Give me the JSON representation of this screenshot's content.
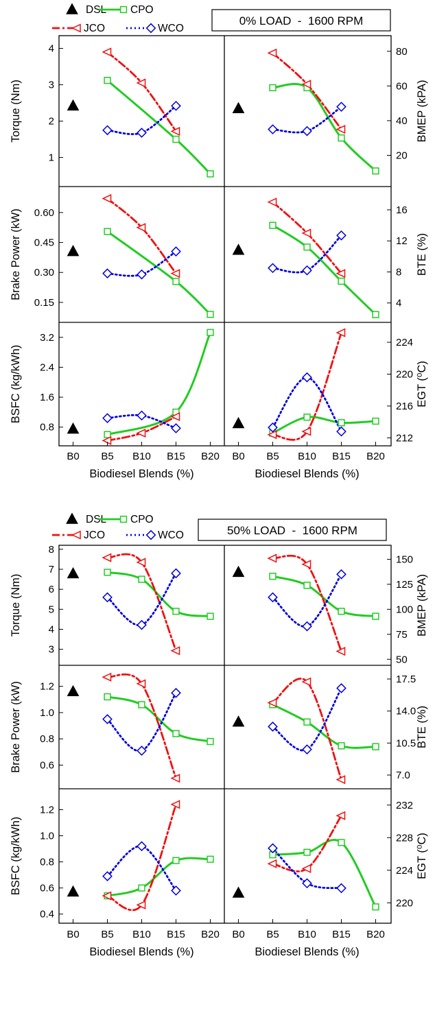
{
  "figure": {
    "x_categories": [
      "B0",
      "B5",
      "B10",
      "B15",
      "B20"
    ],
    "x_label": "Biodiesel Blends (%)",
    "legend": [
      {
        "name": "DSL",
        "color": "#000000",
        "marker": "triangle-filled"
      },
      {
        "name": "CPO",
        "color": "#22cc22",
        "marker": "square-open"
      },
      {
        "name": "JCO",
        "color": "#ee1111",
        "marker": "triangle-left-open"
      },
      {
        "name": "WCO",
        "color": "#0000dd",
        "marker": "diamond-open"
      }
    ]
  },
  "chart_data": [
    {
      "condition": "0% LOAD  -  1600 RPM",
      "type": "line",
      "categories": [
        "B0",
        "B5",
        "B10",
        "B15",
        "B20"
      ],
      "rows": [
        {
          "left": {
            "ylabel": "Torque (Nm)",
            "ylim": [
              0.2,
              4.35
            ],
            "ticks": [
              1,
              2,
              3,
              4
            ],
            "tick_labels": [
              "1",
              "2",
              "3",
              "4"
            ],
            "series": [
              {
                "name": "DSL",
                "values": [
                  2.42,
                  null,
                  null,
                  null,
                  null
                ]
              },
              {
                "name": "CPO",
                "values": [
                  null,
                  3.12,
                  null,
                  1.5,
                  0.55
                ]
              },
              {
                "name": "JCO",
                "values": [
                  null,
                  3.9,
                  3.05,
                  1.72,
                  null
                ]
              },
              {
                "name": "WCO",
                "values": [
                  null,
                  1.75,
                  1.68,
                  2.42,
                  null
                ]
              }
            ]
          },
          "right": {
            "ylabel": "BMEP (kPA)",
            "ylim": [
              2,
              89
            ],
            "ticks": [
              20,
              40,
              60,
              80
            ],
            "tick_labels": [
              "20",
              "40",
              "60",
              "80"
            ],
            "series": [
              {
                "name": "DSL",
                "values": [
                  47,
                  null,
                  null,
                  null,
                  null
                ]
              },
              {
                "name": "CPO",
                "values": [
                  null,
                  59,
                  59,
                  30,
                  11
                ]
              },
              {
                "name": "JCO",
                "values": [
                  null,
                  79,
                  61,
                  35,
                  null
                ]
              },
              {
                "name": "WCO",
                "values": [
                  null,
                  35,
                  34,
                  48,
                  null
                ]
              }
            ]
          }
        },
        {
          "left": {
            "ylabel": "Brake Power (kW)",
            "ylim": [
              0.05,
              0.73
            ],
            "ticks": [
              0.15,
              0.3,
              0.45,
              0.6
            ],
            "tick_labels": [
              "0.15",
              "0.30",
              "0.45",
              "0.60"
            ],
            "series": [
              {
                "name": "DSL",
                "values": [
                  0.405,
                  null,
                  null,
                  null,
                  null
                ]
              },
              {
                "name": "CPO",
                "values": [
                  null,
                  0.505,
                  null,
                  0.255,
                  0.09
                ]
              },
              {
                "name": "JCO",
                "values": [
                  null,
                  0.67,
                  0.525,
                  0.295,
                  null
                ]
              },
              {
                "name": "WCO",
                "values": [
                  null,
                  0.295,
                  0.29,
                  0.405,
                  null
                ]
              }
            ]
          },
          "right": {
            "ylabel": "BTE (%)",
            "ylim": [
              1.5,
              19
            ],
            "ticks": [
              4,
              8,
              12,
              16
            ],
            "tick_labels": [
              "4",
              "8",
              "12",
              "16"
            ],
            "series": [
              {
                "name": "DSL",
                "values": [
                  10.8,
                  null,
                  null,
                  null,
                  null
                ]
              },
              {
                "name": "CPO",
                "values": [
                  null,
                  14,
                  11.2,
                  6.8,
                  2.5
                ]
              },
              {
                "name": "JCO",
                "values": [
                  null,
                  17,
                  13,
                  7.8,
                  null
                ]
              },
              {
                "name": "WCO",
                "values": [
                  null,
                  8.5,
                  8.2,
                  12.7,
                  null
                ]
              }
            ]
          }
        },
        {
          "left": {
            "ylabel": "BSFC (kg/kWh)",
            "ylim": [
              0.3,
              3.6
            ],
            "ticks": [
              0.8,
              1.6,
              2.4,
              3.2
            ],
            "tick_labels": [
              "0.8",
              "1.6",
              "2.4",
              "3.2"
            ],
            "series": [
              {
                "name": "DSL",
                "values": [
                  0.75,
                  null,
                  null,
                  null,
                  null
                ]
              },
              {
                "name": "CPO",
                "values": [
                  null,
                  0.6,
                  null,
                  1.2,
                  3.33
                ]
              },
              {
                "name": "JCO",
                "values": [
                  null,
                  0.44,
                  0.64,
                  1.08,
                  null
                ]
              },
              {
                "name": "WCO",
                "values": [
                  null,
                  1.04,
                  1.11,
                  0.77,
                  null
                ]
              }
            ]
          },
          "right": {
            "ylabel": "EGT (⁰C)",
            "ylim": [
              211,
              226.5
            ],
            "ticks": [
              212,
              216,
              220,
              224
            ],
            "tick_labels": [
              "212",
              "216",
              "220",
              "224"
            ],
            "series": [
              {
                "name": "DSL",
                "values": [
                  213.8,
                  null,
                  null,
                  null,
                  null
                ]
              },
              {
                "name": "CPO",
                "values": [
                  null,
                  212.6,
                  214.6,
                  213.9,
                  214.1
                ]
              },
              {
                "name": "JCO",
                "values": [
                  null,
                  212.4,
                  212.8,
                  225.2,
                  null
                ]
              },
              {
                "name": "WCO",
                "values": [
                  null,
                  213.3,
                  219.6,
                  212.8,
                  null
                ]
              }
            ]
          }
        }
      ]
    },
    {
      "condition": "50% LOAD  -  1600 RPM",
      "type": "line",
      "categories": [
        "B0",
        "B5",
        "B10",
        "B15",
        "B20"
      ],
      "rows": [
        {
          "left": {
            "ylabel": "Torque (Nm)",
            "ylim": [
              2.2,
              8.2
            ],
            "ticks": [
              3,
              4,
              5,
              6,
              7,
              8
            ],
            "tick_labels": [
              "3",
              "4",
              "5",
              "6",
              "7",
              "8"
            ],
            "series": [
              {
                "name": "DSL",
                "values": [
                  6.78,
                  null,
                  null,
                  null,
                  null
                ]
              },
              {
                "name": "CPO",
                "values": [
                  null,
                  6.85,
                  6.5,
                  4.9,
                  4.65
                ]
              },
              {
                "name": "JCO",
                "values": [
                  null,
                  7.58,
                  7.35,
                  2.93,
                  null
                ]
              },
              {
                "name": "WCO",
                "values": [
                  null,
                  5.6,
                  4.22,
                  6.8,
                  null
                ]
              }
            ]
          },
          "right": {
            "ylabel": "BMEP (kPA)",
            "ylim": [
              44,
              164
            ],
            "ticks": [
              50,
              75,
              100,
              125,
              150
            ],
            "tick_labels": [
              "50",
              "75",
              "100",
              "125",
              "150"
            ],
            "series": [
              {
                "name": "DSL",
                "values": [
                  137,
                  null,
                  null,
                  null,
                  null
                ]
              },
              {
                "name": "CPO",
                "values": [
                  null,
                  133,
                  124,
                  98,
                  93
                ]
              },
              {
                "name": "JCO",
                "values": [
                  null,
                  151,
                  145,
                  58,
                  null
                ]
              },
              {
                "name": "WCO",
                "values": [
                  null,
                  112,
                  83,
                  135,
                  null
                ]
              }
            ]
          }
        },
        {
          "left": {
            "ylabel": "Brake Power (kW)",
            "ylim": [
              0.42,
              1.36
            ],
            "ticks": [
              0.6,
              0.8,
              1.0,
              1.2
            ],
            "tick_labels": [
              "0.6",
              "0.8",
              "1.0",
              "1.2"
            ],
            "series": [
              {
                "name": "DSL",
                "values": [
                  1.16,
                  null,
                  null,
                  null,
                  null
                ]
              },
              {
                "name": "CPO",
                "values": [
                  null,
                  1.12,
                  1.06,
                  0.84,
                  0.78
                ]
              },
              {
                "name": "JCO",
                "values": [
                  null,
                  1.27,
                  1.22,
                  0.5,
                  null
                ]
              },
              {
                "name": "WCO",
                "values": [
                  null,
                  0.95,
                  0.71,
                  1.15,
                  null
                ]
              }
            ]
          },
          "right": {
            "ylabel": "BTE (%)",
            "ylim": [
              5.5,
              19.0
            ],
            "ticks": [
              7.0,
              10.5,
              14.0,
              17.5
            ],
            "tick_labels": [
              "7.0",
              "10.5",
              "14.0",
              "17.5"
            ],
            "series": [
              {
                "name": "DSL",
                "values": [
                  12.8,
                  null,
                  null,
                  null,
                  null
                ]
              },
              {
                "name": "CPO",
                "values": [
                  null,
                  14.7,
                  12.8,
                  10.2,
                  10.1
                ]
              },
              {
                "name": "JCO",
                "values": [
                  null,
                  14.9,
                  17.2,
                  6.5,
                  null
                ]
              },
              {
                "name": "WCO",
                "values": [
                  null,
                  12.3,
                  9.8,
                  16.5,
                  null
                ]
              }
            ]
          }
        },
        {
          "left": {
            "ylabel": "BSFC (kg/kWh)",
            "ylim": [
              0.33,
              1.36
            ],
            "ticks": [
              0.4,
              0.6,
              0.8,
              1.0,
              1.2
            ],
            "tick_labels": [
              "0.4",
              "0.6",
              "0.8",
              "1.0",
              "1.2"
            ],
            "series": [
              {
                "name": "DSL",
                "values": [
                  0.57,
                  null,
                  null,
                  null,
                  null
                ]
              },
              {
                "name": "CPO",
                "values": [
                  null,
                  0.54,
                  0.6,
                  0.81,
                  0.82
                ]
              },
              {
                "name": "JCO",
                "values": [
                  null,
                  0.54,
                  0.47,
                  1.24,
                  null
                ]
              },
              {
                "name": "WCO",
                "values": [
                  null,
                  0.69,
                  0.92,
                  0.58,
                  null
                ]
              }
            ]
          },
          "right": {
            "ylabel": "EGT (⁰C)",
            "ylim": [
              217.5,
              234
            ],
            "ticks": [
              220,
              224,
              228,
              232
            ],
            "tick_labels": [
              "220",
              "224",
              "228",
              "232"
            ],
            "series": [
              {
                "name": "DSL",
                "values": [
                  221.2,
                  null,
                  null,
                  null,
                  null
                ]
              },
              {
                "name": "CPO",
                "values": [
                  null,
                  225.9,
                  226.2,
                  227.4,
                  219.5
                ]
              },
              {
                "name": "JCO",
                "values": [
                  null,
                  224.8,
                  224.2,
                  230.7,
                  null
                ]
              },
              {
                "name": "WCO",
                "values": [
                  null,
                  226.7,
                  222.4,
                  221.8,
                  null
                ]
              }
            ]
          }
        }
      ]
    }
  ]
}
